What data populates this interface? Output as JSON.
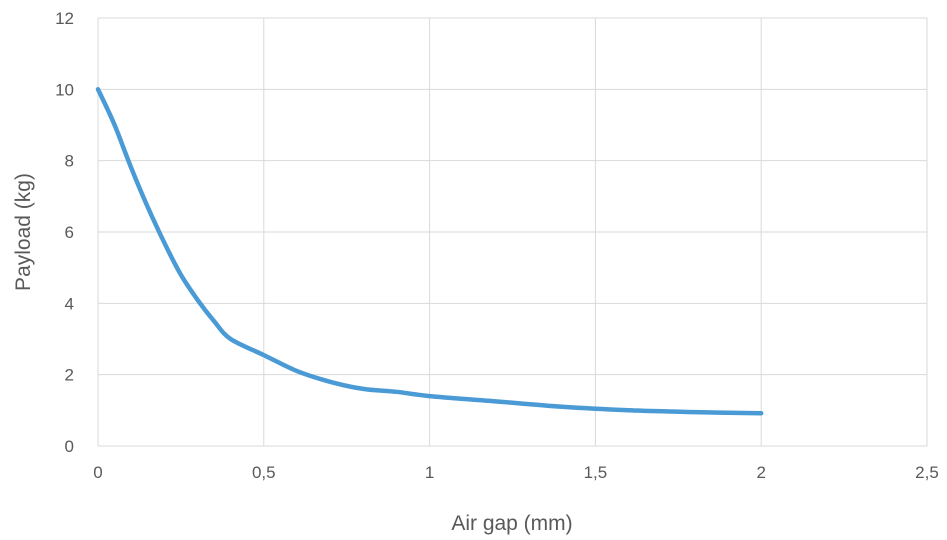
{
  "chart_data": {
    "type": "line",
    "xlabel": "Air gap (mm)",
    "ylabel": "Payload (kg)",
    "xlim": [
      0,
      2.5
    ],
    "ylim": [
      0,
      12
    ],
    "x_ticks": [
      0,
      0.5,
      1,
      1.5,
      2,
      2.5
    ],
    "x_tick_labels": [
      "0",
      "0,5",
      "1",
      "1,5",
      "2",
      "2,5"
    ],
    "y_ticks": [
      0,
      2,
      4,
      6,
      8,
      10,
      12
    ],
    "y_tick_labels": [
      "0",
      "2",
      "4",
      "6",
      "8",
      "10",
      "12"
    ],
    "grid": true,
    "legend": "none",
    "series": [
      {
        "color": "#4a9ad6",
        "x": [
          0,
          0.05,
          0.1,
          0.15,
          0.2,
          0.25,
          0.3,
          0.35,
          0.4,
          0.5,
          0.6,
          0.7,
          0.8,
          0.9,
          1.0,
          1.2,
          1.4,
          1.6,
          1.8,
          2.0
        ],
        "y": [
          10,
          9.0,
          7.8,
          6.7,
          5.7,
          4.8,
          4.1,
          3.5,
          3.0,
          2.55,
          2.1,
          1.8,
          1.6,
          1.52,
          1.4,
          1.25,
          1.1,
          1.0,
          0.95,
          0.92
        ]
      }
    ]
  }
}
